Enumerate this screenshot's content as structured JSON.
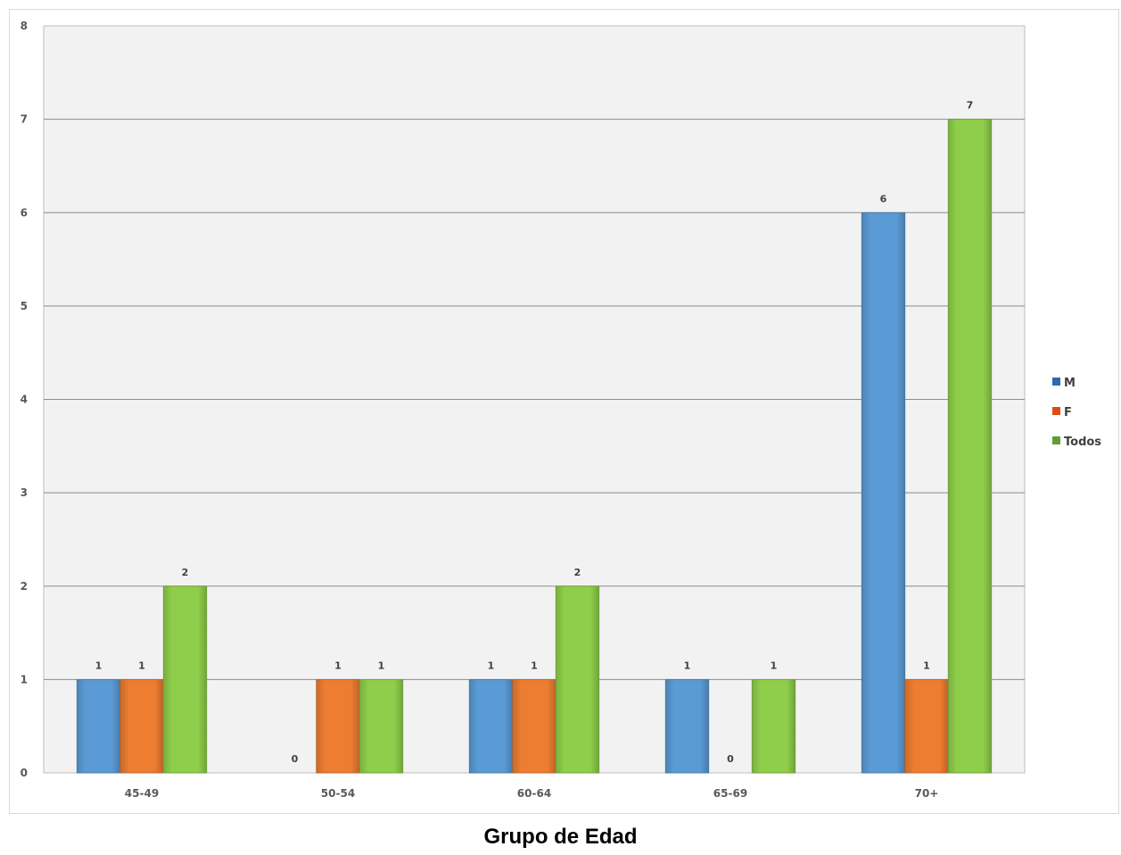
{
  "chart_data": {
    "type": "bar",
    "title": "",
    "xlabel": "Grupo de Edad",
    "ylabel": "",
    "categories": [
      "45-49",
      "50-54",
      "60-64",
      "65-69",
      "70+"
    ],
    "series": [
      {
        "name": "M",
        "color": "#5b9bd5",
        "values": [
          1,
          0,
          1,
          1,
          6
        ]
      },
      {
        "name": "F",
        "color": "#ed7d31",
        "values": [
          1,
          1,
          1,
          0,
          1
        ]
      },
      {
        "name": "Todos",
        "color": "#8fce4a",
        "values": [
          2,
          1,
          2,
          1,
          7
        ]
      }
    ],
    "y_ticks": [
      "0",
      "1",
      "2",
      "3",
      "4",
      "5",
      "6",
      "7",
      "8"
    ],
    "ylim": [
      0,
      8
    ],
    "grid": true,
    "legend_position": "right",
    "data_labels": true,
    "plot_background": "#f2f2f2"
  }
}
